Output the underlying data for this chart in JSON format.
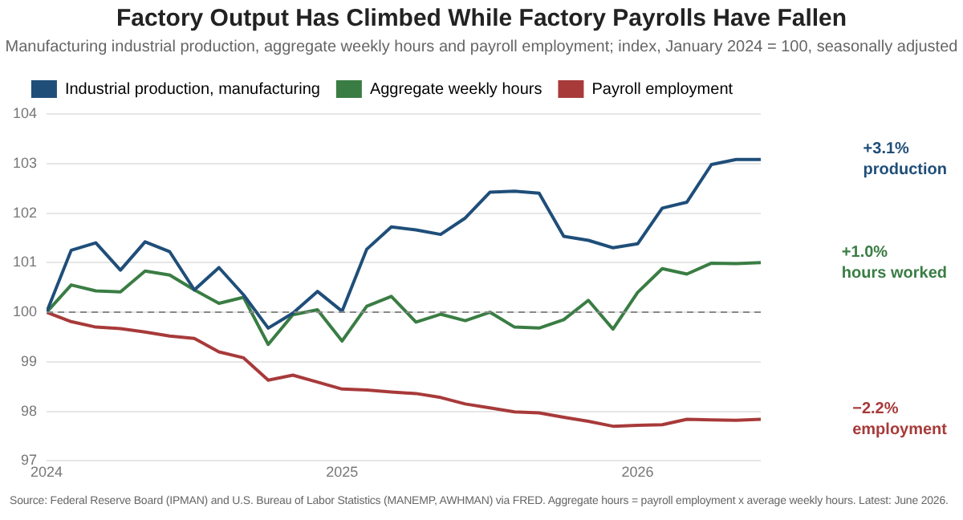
{
  "chart_data": {
    "type": "line",
    "title": "Factory Output Has Climbed While Factory Payrolls Have Fallen",
    "subtitle": "Manufacturing industrial production, aggregate weekly hours and payroll employment; index, January 2024 = 100, seasonally adjusted",
    "x": [
      "2024-01",
      "2024-02",
      "2024-03",
      "2024-04",
      "2024-05",
      "2024-06",
      "2024-07",
      "2024-08",
      "2024-09",
      "2024-10",
      "2024-11",
      "2024-12",
      "2025-01",
      "2025-02",
      "2025-03",
      "2025-04",
      "2025-05",
      "2025-06",
      "2025-07",
      "2025-08",
      "2025-09",
      "2025-10",
      "2025-11",
      "2025-12",
      "2026-01",
      "2026-02",
      "2026-03",
      "2026-04",
      "2026-05",
      "2026-06"
    ],
    "series": [
      {
        "name": "Industrial production, manufacturing",
        "color": "#1f4e79",
        "values": [
          100,
          101.25,
          101.4,
          100.85,
          101.42,
          101.22,
          100.45,
          100.9,
          100.35,
          99.68,
          99.98,
          100.42,
          100.02,
          101.27,
          101.72,
          101.66,
          101.57,
          101.9,
          102.42,
          102.44,
          102.4,
          101.53,
          101.45,
          101.3,
          101.38,
          102.1,
          102.22,
          102.98,
          103.08,
          103.08
        ]
      },
      {
        "name": "Aggregate weekly hours",
        "color": "#3a7d44",
        "values": [
          100,
          100.55,
          100.43,
          100.41,
          100.83,
          100.75,
          100.45,
          100.18,
          100.3,
          99.35,
          99.95,
          100.05,
          99.42,
          100.12,
          100.32,
          99.8,
          99.96,
          99.83,
          100,
          99.7,
          99.68,
          99.85,
          100.24,
          99.66,
          100.4,
          100.88,
          100.77,
          100.99,
          100.98,
          101
        ]
      },
      {
        "name": "Payroll employment",
        "color": "#a83a3a",
        "values": [
          100,
          99.81,
          99.7,
          99.67,
          99.6,
          99.52,
          99.47,
          99.2,
          99.08,
          98.63,
          98.73,
          98.59,
          98.45,
          98.43,
          98.39,
          98.36,
          98.28,
          98.15,
          98.07,
          97.99,
          97.97,
          97.88,
          97.8,
          97.7,
          97.72,
          97.73,
          97.84,
          97.83,
          97.82,
          97.84
        ]
      }
    ],
    "xlim": [
      "2024-01",
      "2026-06"
    ],
    "xticks": [
      "2024",
      "2025",
      "2026"
    ],
    "ylim": [
      97,
      104
    ],
    "yticks": [
      97,
      98,
      99,
      100,
      101,
      102,
      103,
      104
    ],
    "grid": "y",
    "legend": "top",
    "ref_lines": [
      {
        "axis": "y",
        "value": 100,
        "color": "#888888",
        "line_style": "dashed"
      }
    ],
    "annotations": [
      "+3.1%\nproduction",
      "+1.0%\nhours worked",
      "−2.2%\nemployment",
      "Source: Federal Reserve Board (IPMAN) and U.S. Bureau of Labor Statistics (MANEMP, AWHMAN) via FRED. Aggregate hours = payroll employment x average weekly hours. Latest: June 2026."
    ]
  }
}
